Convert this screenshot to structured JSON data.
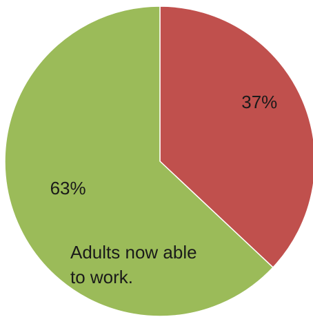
{
  "chart_data": {
    "type": "pie",
    "start_angle_deg": 0,
    "direction": "clockwise",
    "slices": [
      {
        "label": "37%",
        "value": 37,
        "color": "#c0504d"
      },
      {
        "label": "63%",
        "value": 63,
        "color": "#9bbb59",
        "annotation": [
          "Adults now able",
          "to work."
        ]
      }
    ],
    "legend": "none"
  }
}
